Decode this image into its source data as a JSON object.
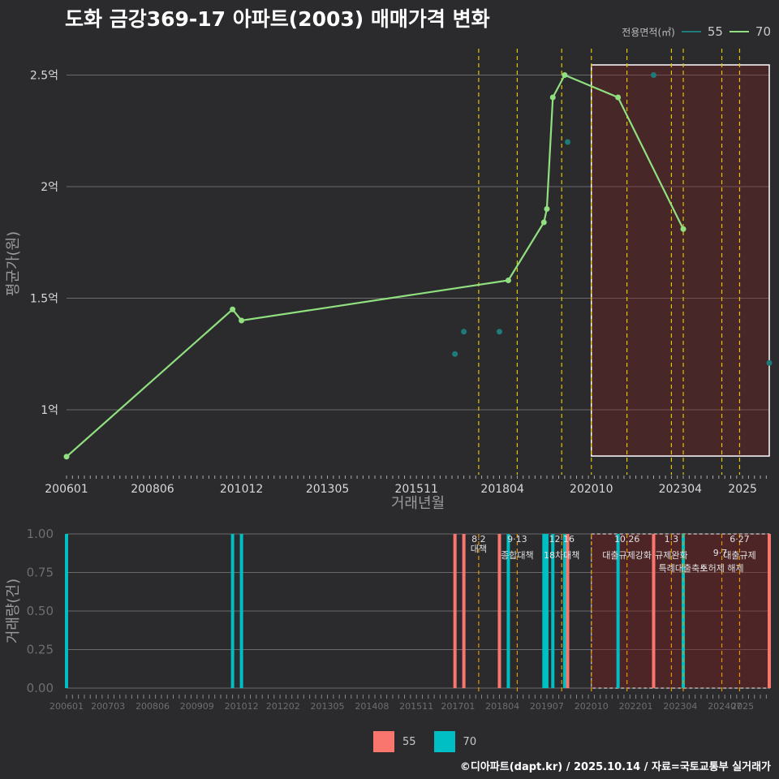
{
  "title": "도화 금강369-17 아파트(2003) 매매가격 변화",
  "legend": {
    "title": "전용면적(㎡)",
    "items": [
      {
        "label": "55",
        "line_color": "#1f7a7a",
        "bar_color": "#f8766d"
      },
      {
        "label": "70",
        "line_color": "#90e080",
        "bar_color": "#00bfc4"
      }
    ]
  },
  "footer": "©디아파트(dapt.kr) / 2025.10.14 / 자료=국토교통부 실거래가",
  "chart_data": [
    {
      "type": "line",
      "title": "도화 금강369-17 아파트(2003) 매매가격 변화",
      "xlabel": "거래년월",
      "ylabel": "평균가(원)",
      "x_start": "200601",
      "x_end": "202510",
      "xticks": [
        "200601",
        "200806",
        "201012",
        "201305",
        "201511",
        "201804",
        "202010",
        "202304",
        "2025"
      ],
      "yticks": [
        {
          "v": 1.0,
          "label": "1억"
        },
        {
          "v": 1.5,
          "label": "1.5억"
        },
        {
          "v": 2.0,
          "label": "2억"
        },
        {
          "v": 2.5,
          "label": "2.5억"
        }
      ],
      "ylim": [
        0.8,
        2.6
      ],
      "series": [
        {
          "name": "70",
          "mode": "line",
          "color": "#90e080",
          "points": [
            [
              "200601",
              0.79
            ],
            [
              "201009",
              1.45
            ],
            [
              "201012",
              1.4
            ],
            [
              "201806",
              1.58
            ],
            [
              "201906",
              1.84
            ],
            [
              "201907",
              1.9
            ],
            [
              "201909",
              2.4
            ],
            [
              "202001",
              2.5
            ],
            [
              "202107",
              2.4
            ],
            [
              "202305",
              1.81
            ]
          ]
        },
        {
          "name": "55",
          "mode": "points",
          "color": "#1f7a7a",
          "points": [
            [
              "201612",
              1.25
            ],
            [
              "201703",
              1.35
            ],
            [
              "201803",
              1.35
            ],
            [
              "202002",
              2.2
            ],
            [
              "202207",
              2.5
            ],
            [
              "202510",
              1.21
            ]
          ]
        }
      ],
      "policy_lines": [
        "201708",
        "201809",
        "201912",
        "202010",
        "202110",
        "202301",
        "202305",
        "202406",
        "202412"
      ],
      "shaded_range": [
        "202010",
        "202510"
      ]
    },
    {
      "type": "bar",
      "xlabel": "",
      "ylabel": "거래량(건)",
      "xticks": [
        "200601",
        "200703",
        "200806",
        "200909",
        "201012",
        "201202",
        "201305",
        "201408",
        "201511",
        "201701",
        "201804",
        "201907",
        "202010",
        "202201",
        "202304",
        "202407",
        "2025"
      ],
      "yticks": [
        {
          "v": 0.0,
          "label": "0.00"
        },
        {
          "v": 0.25,
          "label": "0.25"
        },
        {
          "v": 0.5,
          "label": "0.50"
        },
        {
          "v": 0.75,
          "label": "0.75"
        },
        {
          "v": 1.0,
          "label": "1.00"
        }
      ],
      "ylim": [
        0,
        1.0
      ],
      "bars": [
        {
          "x": "200601",
          "series": "70",
          "value": 1
        },
        {
          "x": "201009",
          "series": "70",
          "value": 1
        },
        {
          "x": "201012",
          "series": "70",
          "value": 1
        },
        {
          "x": "201612",
          "series": "55",
          "value": 1
        },
        {
          "x": "201703",
          "series": "55",
          "value": 1
        },
        {
          "x": "201803",
          "series": "55",
          "value": 1
        },
        {
          "x": "201806",
          "series": "70",
          "value": 1
        },
        {
          "x": "201906",
          "series": "70",
          "value": 1
        },
        {
          "x": "201907",
          "series": "70",
          "value": 1
        },
        {
          "x": "201909",
          "series": "70",
          "value": 1
        },
        {
          "x": "202001",
          "series": "70",
          "value": 1
        },
        {
          "x": "202002",
          "series": "55",
          "value": 1
        },
        {
          "x": "202107",
          "series": "70",
          "value": 1
        },
        {
          "x": "202207",
          "series": "55",
          "value": 1
        },
        {
          "x": "202305",
          "series": "70",
          "value": 1
        },
        {
          "x": "202510",
          "series": "55",
          "value": 1
        }
      ],
      "annotations": [
        {
          "x": "201708",
          "date": "8·2",
          "text": "대책"
        },
        {
          "x": "201809",
          "date": "9·13",
          "text": "종합대책"
        },
        {
          "x": "201912",
          "date": "12·16",
          "text": "18차대책"
        },
        {
          "x": "202110",
          "date": "10.26",
          "text": "대출규제강화"
        },
        {
          "x": "202301",
          "date": "1·3",
          "text": "규제완화"
        },
        {
          "x": "202305",
          "date": "",
          "text": "특례대출축소"
        },
        {
          "x": "202406",
          "date": "9·7",
          "text": "토허제 해제"
        },
        {
          "x": "202412",
          "date": "6·27",
          "text": "대출규제"
        }
      ]
    }
  ]
}
